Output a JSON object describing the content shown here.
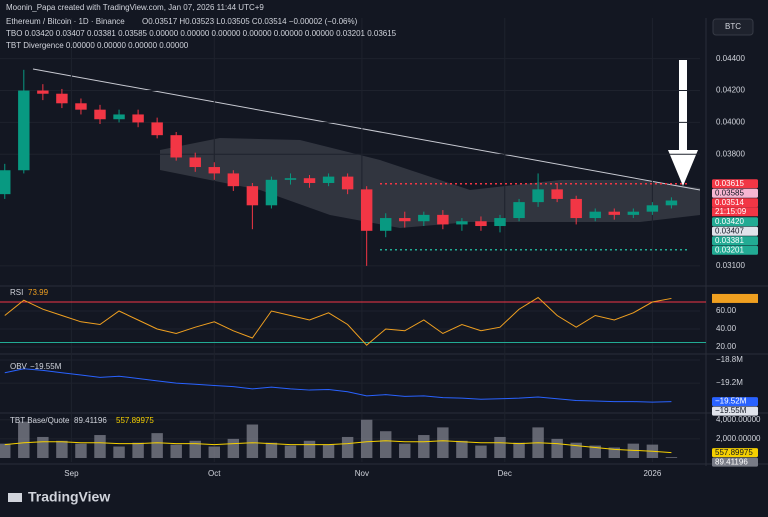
{
  "header": {
    "author": "Moonin_Papa created with TradingView.com, Jan 07, 2026 11:44 UTC+9",
    "symbol": "BTC",
    "footer": "TradingView"
  },
  "chart_data": [
    {
      "type": "candlestick",
      "title": "Ethereum / Bitcoin · 1D · Binance",
      "ohlc_text": "O0.03517 H0.03523 L0.03505 C0.03514 −0.00002 (−0.06%)",
      "indicators": [
        "TBO 0.03420 0.03407 0.03381 0.03585 0.00000 0.00000 0.00000 0.00000 0.00000 0.00000 0.03201 0.03615",
        "TBT Divergence 0.00000 0.00000 0.00000 0.00000"
      ],
      "x": [
        0,
        4,
        8,
        12,
        16,
        20,
        24,
        28,
        32,
        36,
        40,
        44,
        48,
        52,
        56,
        60,
        64,
        68,
        72,
        76,
        80,
        84,
        88,
        92,
        96,
        100,
        104,
        108,
        112,
        116,
        120,
        124,
        128,
        132,
        136,
        140
      ],
      "open": [
        0.0355,
        0.037,
        0.042,
        0.0418,
        0.0412,
        0.0408,
        0.0402,
        0.0405,
        0.04,
        0.0392,
        0.0378,
        0.0372,
        0.0368,
        0.036,
        0.0348,
        0.0364,
        0.0365,
        0.0362,
        0.0366,
        0.0358,
        0.0332,
        0.034,
        0.0338,
        0.0342,
        0.0336,
        0.0338,
        0.0335,
        0.034,
        0.035,
        0.0358,
        0.0352,
        0.034,
        0.0344,
        0.0342,
        0.0344,
        0.0348
      ],
      "high": [
        0.0374,
        0.0433,
        0.0424,
        0.0421,
        0.0415,
        0.0411,
        0.0408,
        0.0408,
        0.0403,
        0.0394,
        0.0381,
        0.0375,
        0.037,
        0.0362,
        0.0366,
        0.0368,
        0.0367,
        0.0368,
        0.0368,
        0.036,
        0.0343,
        0.0344,
        0.0344,
        0.0345,
        0.034,
        0.0341,
        0.0342,
        0.0352,
        0.0368,
        0.0362,
        0.0354,
        0.0346,
        0.0346,
        0.0346,
        0.035,
        0.0353
      ],
      "low": [
        0.0352,
        0.0368,
        0.0414,
        0.0409,
        0.0405,
        0.0399,
        0.04,
        0.0397,
        0.039,
        0.0376,
        0.0369,
        0.0364,
        0.0357,
        0.0333,
        0.0346,
        0.0361,
        0.0359,
        0.036,
        0.0355,
        0.031,
        0.0328,
        0.0334,
        0.0335,
        0.0333,
        0.0332,
        0.0332,
        0.0331,
        0.0338,
        0.0347,
        0.035,
        0.0336,
        0.0338,
        0.0339,
        0.034,
        0.0342,
        0.0346
      ],
      "close": [
        0.037,
        0.042,
        0.0418,
        0.0412,
        0.0408,
        0.0402,
        0.0405,
        0.04,
        0.0392,
        0.0378,
        0.0372,
        0.0368,
        0.036,
        0.0348,
        0.0364,
        0.0365,
        0.0362,
        0.0366,
        0.0358,
        0.0332,
        0.034,
        0.0338,
        0.0342,
        0.0336,
        0.0338,
        0.0335,
        0.034,
        0.035,
        0.0358,
        0.0352,
        0.034,
        0.0344,
        0.0342,
        0.0344,
        0.0348,
        0.0351
      ],
      "up_color": "#089981",
      "down_color": "#f23645",
      "xlim": [
        -1,
        146
      ],
      "xticks": [
        {
          "value": 14,
          "label": "Sep"
        },
        {
          "value": 44,
          "label": "Oct"
        },
        {
          "value": 75,
          "label": "Nov"
        },
        {
          "value": 105,
          "label": "Dec"
        },
        {
          "value": 136,
          "label": "2026"
        }
      ],
      "ylim": [
        0.0298,
        0.0463
      ],
      "yticks": [
        {
          "value": 0.031,
          "label": "0.03100"
        },
        {
          "value": 0.038,
          "label": "0.03800"
        },
        {
          "value": 0.04,
          "label": "0.04000"
        },
        {
          "value": 0.042,
          "label": "0.04200"
        },
        {
          "value": 0.044,
          "label": "0.04400"
        }
      ],
      "countdown": "21:15:09",
      "price_labels": [
        {
          "value": 0.03615,
          "label": "0.03615",
          "color": "#f23645"
        },
        {
          "value": 0.03585,
          "label": "0.03585",
          "color": "#f7b6d2"
        },
        {
          "value": 0.03514,
          "label": "0.03514",
          "color": "#f23645"
        },
        {
          "value": 0.0342,
          "label": "0.03420",
          "color": "#22ab94"
        },
        {
          "value": 0.03407,
          "label": "0.03407",
          "color": "#e0e3eb"
        },
        {
          "value": 0.03381,
          "label": "0.03381",
          "color": "#22ab94"
        },
        {
          "value": 0.03201,
          "label": "0.03201",
          "color": "#22ab94"
        }
      ]
    },
    {
      "type": "line",
      "title": "RSI",
      "last": 73.99,
      "color": "#f0a020",
      "values": [
        55,
        72,
        62,
        55,
        48,
        45,
        60,
        50,
        40,
        35,
        42,
        48,
        38,
        30,
        60,
        55,
        50,
        58,
        45,
        22,
        40,
        38,
        50,
        35,
        45,
        38,
        42,
        62,
        75,
        55,
        42,
        55,
        50,
        58,
        70,
        73.99
      ],
      "levels": [
        {
          "value": 70,
          "color": "#f23645"
        },
        {
          "value": 25,
          "color": "#22ab94"
        }
      ],
      "ylim": [
        14.4,
        85.6
      ],
      "yticks": [
        {
          "value": 20,
          "label": "20.00"
        },
        {
          "value": 40,
          "label": "40.00"
        },
        {
          "value": 60,
          "label": "60.00"
        }
      ]
    },
    {
      "type": "line",
      "title": "OBV",
      "last": {
        "value": -19.55,
        "label": "−19.55M"
      },
      "color": "#2962ff",
      "values": [
        -19.02,
        -18.95,
        -18.98,
        -19.02,
        -19.06,
        -19.1,
        -19.08,
        -19.12,
        -19.16,
        -19.2,
        -19.22,
        -19.24,
        -19.26,
        -19.3,
        -19.27,
        -19.3,
        -19.32,
        -19.31,
        -19.35,
        -19.42,
        -19.4,
        -19.43,
        -19.42,
        -19.45,
        -19.46,
        -19.48,
        -19.47,
        -19.46,
        -19.44,
        -19.47,
        -19.5,
        -19.51,
        -19.52,
        -19.52,
        -19.53,
        -19.52
      ],
      "ylim": [
        -19.7,
        -18.73
      ],
      "yticks": [
        {
          "value": -18.8,
          "label": "−18.8M"
        },
        {
          "value": -19.2,
          "label": "−19.2M"
        }
      ],
      "price_labels": [
        {
          "value": -19.52,
          "label": "−19.52M",
          "color": "#2962ff"
        },
        {
          "value": -19.55,
          "label": "−19.55M",
          "color": "#e0e3eb"
        }
      ]
    },
    {
      "type": "bar",
      "title": "TBT Base/Quote",
      "color": "#787b86",
      "ma_color": "#f5d000",
      "values": [
        1500,
        3800,
        2200,
        1800,
        1500,
        2400,
        1200,
        1600,
        2600,
        1400,
        1800,
        1200,
        2000,
        3500,
        1600,
        1300,
        1800,
        1400,
        2200,
        4000,
        2800,
        1500,
        2400,
        3200,
        1800,
        1300,
        2200,
        1600,
        3200,
        2000,
        1600,
        1300,
        1100,
        1500,
        1400,
        89.41196
      ],
      "ma": [
        1400,
        1600,
        1700,
        1700,
        1600,
        1600,
        1500,
        1500,
        1600,
        1500,
        1500,
        1400,
        1500,
        1600,
        1500,
        1400,
        1400,
        1400,
        1500,
        1700,
        1800,
        1700,
        1700,
        1800,
        1700,
        1600,
        1600,
        1500,
        1600,
        1500,
        1300,
        1100,
        900,
        800,
        700,
        557.89975
      ],
      "ylim": [
        0,
        4600
      ],
      "yticks": [
        {
          "value": 2000,
          "label": "2,000.00000"
        },
        {
          "value": 4000,
          "label": "4,000.00000"
        }
      ],
      "price_labels": [
        {
          "value": 557.89975,
          "label": "557.89975",
          "color": "#f5d000"
        },
        {
          "value": 89.41196,
          "label": "89.41196",
          "color": "#787b86"
        }
      ]
    }
  ]
}
